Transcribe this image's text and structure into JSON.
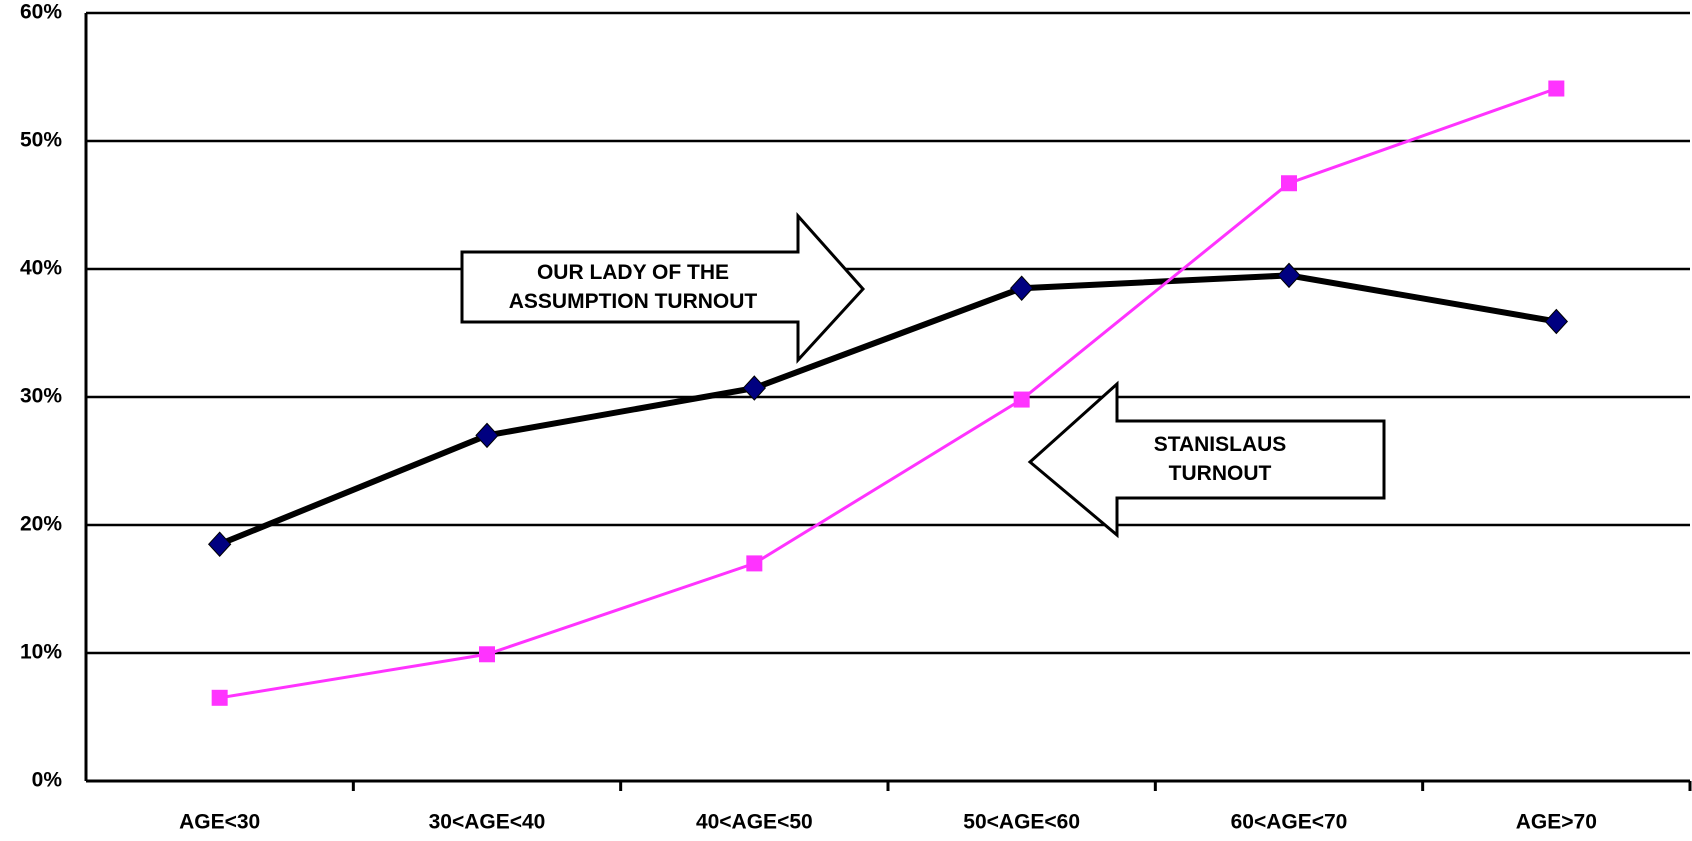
{
  "chart_data": {
    "type": "line",
    "categories": [
      "AGE<30",
      "30<AGE<40",
      "40<AGE<50",
      "50<AGE<60",
      "60<AGE<70",
      "AGE>70"
    ],
    "series": [
      {
        "name": "OUR LADY OF THE ASSUMPTION TURNOUT",
        "color": "#000000",
        "marker_color": "#000080",
        "values": [
          18.5,
          27,
          30.7,
          38.5,
          39.5,
          35.9
        ]
      },
      {
        "name": "STANISLAUS TURNOUT",
        "color": "#ff33ff",
        "marker_color": "#ff33ff",
        "values": [
          6.5,
          9.9,
          17,
          29.8,
          46.7,
          54.1
        ]
      }
    ],
    "ylim": [
      0,
      60
    ],
    "yticks": [
      {
        "value": 0,
        "label": "0%"
      },
      {
        "value": 10,
        "label": "10%"
      },
      {
        "value": 20,
        "label": "20%"
      },
      {
        "value": 30,
        "label": "30%"
      },
      {
        "value": 40,
        "label": "40%"
      },
      {
        "value": 50,
        "label": "50%"
      },
      {
        "value": 60,
        "label": "60%"
      }
    ],
    "grid": true
  }
}
